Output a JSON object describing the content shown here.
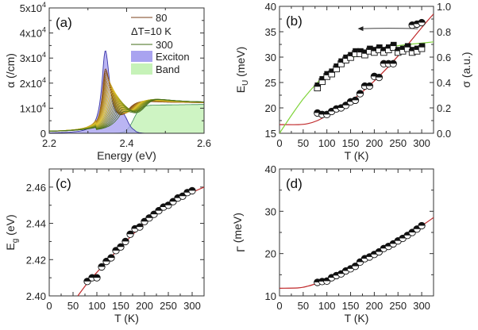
{
  "chart_data": [
    {
      "panel_label": "(a)",
      "type": "line",
      "xlabel": "Energy (eV)",
      "ylabel": "α (/cm)",
      "xlim": [
        2.2,
        2.6
      ],
      "ylim": [
        0,
        50000
      ],
      "xticks": [
        2.2,
        2.4,
        2.6
      ],
      "xtick_labels": [
        "2.2",
        "2.4",
        "2.6"
      ],
      "yticks": [
        0,
        10000,
        20000,
        30000,
        40000,
        50000
      ],
      "ytick_labels": [
        {
          "base": "0",
          "exp": ""
        },
        {
          "base": "1x10",
          "exp": "4"
        },
        {
          "base": "2x10",
          "exp": "4"
        },
        {
          "base": "3x10",
          "exp": "4"
        },
        {
          "base": "4x10",
          "exp": "4"
        },
        {
          "base": "5x10",
          "exp": "4"
        }
      ],
      "legend": {
        "placement": "top-right",
        "entries": [
          {
            "label": "80",
            "color": "#7a3f1a"
          },
          {
            "label": "ΔT=10 K"
          },
          {
            "label": "300",
            "color": "#3f6b16"
          },
          {
            "label": "Exciton",
            "color": "#a9a3f0"
          },
          {
            "label": "Band",
            "color": "#c6f2b8"
          }
        ]
      },
      "series_temperatures_K": {
        "start": 80,
        "end": 300,
        "step": 10
      },
      "colors": {
        "low_T": "#7a3f1a",
        "mid_T": "#e3c52a",
        "high_T": "#3f6b16",
        "exciton": "#a9a3f0",
        "band": "#c6f2b8",
        "exciton_edge": "#3b36a8",
        "band_edge": "#3c8a5a"
      }
    },
    {
      "panel_label": "(b)",
      "type": "scatter",
      "xlabel": "T (K)",
      "ylabel": {
        "base": "E",
        "sub": "U",
        "rest": " (meV)"
      },
      "ylabel_right": "σ (a.u.)",
      "xlim": [
        0,
        325
      ],
      "ylim": [
        15,
        40
      ],
      "ylim_right": [
        0,
        1.0
      ],
      "xticks": [
        0,
        50,
        100,
        150,
        200,
        250,
        300
      ],
      "yticks": [
        15,
        20,
        25,
        30,
        35,
        40
      ],
      "yticks_right": [
        0.0,
        0.2,
        0.4,
        0.6,
        0.8,
        1.0
      ],
      "ytick_labels_right": [
        "0.0",
        "0.2",
        "0.4",
        "0.6",
        "0.8",
        "1.0"
      ],
      "series": [
        {
          "marker": "half-filled-circle",
          "axis": "left",
          "x": [
            80,
            90,
            100,
            110,
            120,
            130,
            140,
            150,
            160,
            170,
            180,
            190,
            200,
            210,
            220,
            230,
            240,
            280,
            290,
            300
          ],
          "y": [
            19.0,
            18.7,
            18.7,
            19.3,
            19.8,
            20.0,
            20.5,
            21.2,
            21.5,
            22.8,
            24.3,
            24.3,
            26.2,
            26.0,
            28.7,
            28.7,
            28.7,
            36.3,
            36.5,
            36.8
          ]
        },
        {
          "marker": "half-filled-square",
          "axis": "right",
          "x": [
            80,
            90,
            100,
            110,
            120,
            130,
            140,
            150,
            160,
            170,
            180,
            190,
            200,
            210,
            220,
            230,
            240,
            250,
            260,
            270,
            280,
            290,
            300
          ],
          "y": [
            0.37,
            0.42,
            0.46,
            0.48,
            0.52,
            0.56,
            0.59,
            0.61,
            0.64,
            0.64,
            0.63,
            0.66,
            0.65,
            0.67,
            0.65,
            0.67,
            0.69,
            0.65,
            0.66,
            0.68,
            0.65,
            0.66,
            0.68
          ]
        },
        {
          "marker": "fit-line",
          "axis": "left",
          "color": "#c0282a",
          "x": [
            0,
            40,
            60,
            80,
            100,
            150,
            200,
            250,
            300,
            325
          ],
          "y": [
            16.7,
            16.7,
            16.9,
            17.5,
            18.5,
            21.3,
            25.3,
            30.2,
            35.8,
            38.5
          ]
        },
        {
          "marker": "fit-line",
          "axis": "right",
          "color": "#7fd43a",
          "x": [
            0,
            25,
            50,
            80,
            100,
            150,
            200,
            250,
            300,
            325
          ],
          "y": [
            0.0,
            0.14,
            0.27,
            0.4,
            0.47,
            0.59,
            0.65,
            0.69,
            0.71,
            0.72
          ]
        }
      ],
      "annotation": "arrow pointing to left axis"
    },
    {
      "panel_label": "(c)",
      "type": "scatter",
      "xlabel": "T (K)",
      "ylabel": {
        "base": "E",
        "sub": "g",
        "rest": " (eV)"
      },
      "xlim": [
        0,
        325
      ],
      "ylim": [
        2.4,
        2.47
      ],
      "xticks": [
        0,
        50,
        100,
        150,
        200,
        250,
        300
      ],
      "yticks": [
        2.4,
        2.42,
        2.44,
        2.46
      ],
      "ytick_labels": [
        "2.40",
        "2.42",
        "2.44",
        "2.46"
      ],
      "series": [
        {
          "marker": "half-filled-circle",
          "x": [
            80,
            90,
            100,
            110,
            120,
            130,
            140,
            150,
            160,
            170,
            180,
            190,
            200,
            210,
            220,
            230,
            240,
            250,
            260,
            270,
            280,
            290,
            300
          ],
          "y": [
            2.408,
            2.41,
            2.41,
            2.416,
            2.419,
            2.421,
            2.425,
            2.427,
            2.43,
            2.434,
            2.437,
            2.438,
            2.441,
            2.443,
            2.445,
            2.447,
            2.449,
            2.45,
            2.452,
            2.454,
            2.455,
            2.457,
            2.458
          ]
        },
        {
          "marker": "fit-line",
          "color": "#c0282a",
          "x": [
            60,
            80,
            100,
            150,
            200,
            250,
            300,
            325
          ],
          "y": [
            2.4,
            2.407,
            2.413,
            2.427,
            2.44,
            2.45,
            2.457,
            2.46
          ]
        }
      ]
    },
    {
      "panel_label": "(d)",
      "type": "scatter",
      "xlabel": "T (K)",
      "ylabel": {
        "base": "Γ",
        "sub": "",
        "rest": " (meV)"
      },
      "xlim": [
        0,
        325
      ],
      "ylim": [
        10,
        40
      ],
      "xticks": [
        0,
        50,
        100,
        150,
        200,
        250,
        300
      ],
      "yticks": [
        10,
        20,
        30,
        40
      ],
      "series": [
        {
          "marker": "half-filled-circle",
          "x": [
            80,
            90,
            100,
            110,
            120,
            130,
            140,
            150,
            160,
            170,
            180,
            190,
            200,
            210,
            220,
            230,
            240,
            250,
            260,
            270,
            280,
            290,
            300
          ],
          "y": [
            13.2,
            13.4,
            13.5,
            14.3,
            14.8,
            15.2,
            15.9,
            16.4,
            17.0,
            18.0,
            18.8,
            19.2,
            19.8,
            20.4,
            21.2,
            21.7,
            22.3,
            23.0,
            23.6,
            24.3,
            25.0,
            25.8,
            26.6
          ]
        },
        {
          "marker": "fit-line",
          "color": "#c0282a",
          "x": [
            0,
            40,
            60,
            80,
            100,
            150,
            200,
            250,
            300,
            325
          ],
          "y": [
            11.8,
            11.9,
            12.3,
            13.0,
            13.8,
            16.4,
            19.7,
            23.1,
            26.6,
            28.5
          ]
        }
      ]
    }
  ]
}
